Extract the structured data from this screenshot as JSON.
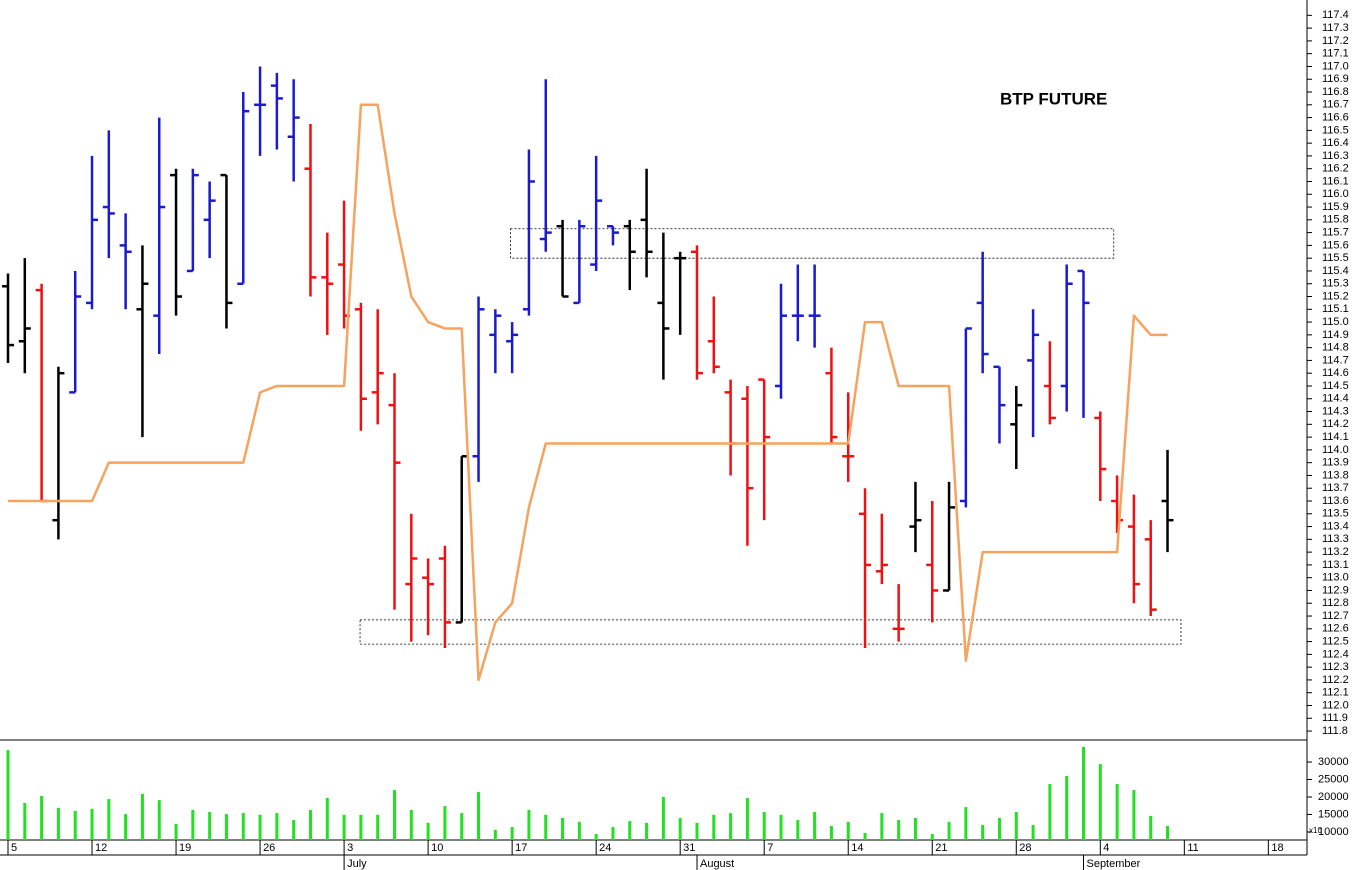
{
  "chart_data": [
    {
      "type": "ohlc",
      "title": "BTP FUTURE",
      "x": [
        0,
        1,
        2,
        3,
        4,
        5,
        6,
        7,
        8,
        9,
        10,
        11,
        12,
        13,
        14,
        15,
        16,
        17,
        18,
        19,
        20,
        21,
        22,
        23,
        24,
        25,
        26,
        27,
        28,
        29,
        30,
        31,
        32,
        33,
        34,
        35,
        36,
        37,
        38,
        39,
        40,
        41,
        42,
        43,
        44,
        45,
        46,
        47,
        48,
        49,
        50,
        51,
        52,
        53,
        54,
        55,
        56,
        57,
        58,
        59,
        60,
        61,
        62,
        63,
        64,
        65,
        66,
        67,
        68,
        69
      ],
      "open": [
        115.28,
        114.85,
        115.25,
        113.45,
        114.45,
        115.15,
        115.9,
        115.6,
        115.1,
        115.05,
        116.15,
        115.4,
        115.8,
        116.15,
        115.3,
        116.7,
        116.85,
        116.45,
        116.2,
        115.35,
        115.45,
        115.1,
        114.45,
        114.35,
        112.95,
        113.0,
        113.15,
        112.65,
        113.95,
        114.9,
        114.85,
        115.1,
        115.65,
        115.75,
        115.15,
        115.45,
        115.75,
        115.75,
        115.8,
        115.15,
        115.5,
        115.55,
        114.85,
        114.45,
        114.4,
        114.55,
        114.5,
        115.05,
        115.05,
        114.6,
        113.95,
        113.5,
        113.05,
        112.6,
        113.4,
        113.1,
        112.9,
        113.6,
        115.15,
        114.65,
        114.2,
        114.7,
        114.5,
        114.5,
        115.4,
        114.25,
        113.6,
        113.4,
        113.3,
        113.6
      ],
      "high": [
        115.38,
        115.5,
        115.3,
        114.65,
        115.4,
        116.3,
        116.5,
        115.85,
        115.6,
        116.6,
        116.2,
        116.2,
        116.1,
        116.15,
        116.8,
        117.0,
        116.95,
        116.9,
        116.55,
        115.7,
        115.95,
        115.15,
        115.1,
        114.6,
        113.5,
        113.15,
        113.25,
        113.95,
        115.2,
        115.1,
        115.0,
        116.35,
        116.9,
        115.8,
        115.8,
        116.3,
        115.75,
        115.8,
        116.2,
        115.7,
        115.55,
        115.6,
        115.2,
        114.55,
        114.5,
        114.55,
        115.3,
        115.45,
        115.45,
        114.8,
        114.45,
        113.7,
        113.5,
        112.95,
        113.75,
        113.6,
        113.75,
        114.95,
        115.55,
        114.65,
        114.5,
        115.1,
        114.85,
        115.45,
        115.4,
        114.3,
        113.8,
        113.65,
        113.45,
        114.0
      ],
      "low": [
        114.68,
        114.6,
        113.6,
        113.3,
        114.45,
        115.1,
        115.5,
        115.1,
        114.1,
        114.75,
        115.05,
        115.4,
        115.5,
        114.95,
        115.3,
        116.3,
        116.35,
        116.1,
        115.2,
        114.9,
        114.95,
        114.15,
        114.2,
        112.75,
        112.5,
        112.55,
        112.45,
        112.65,
        113.75,
        114.6,
        114.6,
        115.05,
        115.55,
        115.2,
        115.15,
        115.4,
        115.6,
        115.25,
        115.35,
        114.55,
        114.9,
        114.55,
        114.6,
        113.8,
        113.25,
        113.45,
        114.4,
        114.85,
        114.8,
        114.05,
        113.75,
        112.45,
        112.95,
        112.5,
        113.2,
        112.65,
        112.9,
        113.55,
        114.6,
        114.05,
        113.85,
        114.1,
        114.2,
        114.3,
        114.25,
        113.6,
        113.35,
        112.8,
        112.7,
        113.2
      ],
      "close": [
        114.82,
        114.95,
        113.6,
        114.6,
        115.2,
        115.8,
        115.85,
        115.55,
        115.3,
        115.9,
        115.2,
        116.15,
        115.95,
        115.15,
        116.65,
        116.7,
        116.75,
        116.6,
        115.35,
        115.3,
        115.05,
        114.4,
        114.6,
        113.9,
        113.15,
        112.95,
        112.65,
        113.95,
        115.1,
        115.05,
        114.9,
        116.1,
        115.7,
        115.2,
        115.75,
        115.95,
        115.7,
        115.55,
        115.55,
        114.95,
        115.5,
        114.6,
        114.65,
        114.05,
        113.7,
        114.1,
        115.05,
        115.05,
        115.05,
        114.1,
        113.95,
        113.1,
        113.1,
        112.6,
        113.45,
        112.9,
        113.55,
        114.95,
        114.75,
        114.35,
        114.35,
        114.9,
        114.25,
        115.3,
        115.15,
        113.85,
        113.45,
        112.95,
        112.75,
        113.45
      ],
      "colors": [
        "#000000",
        "#000000",
        "#ee1111",
        "#000000",
        "#1a1ad0",
        "#1a1ad0",
        "#1a1ad0",
        "#1a1ad0",
        "#000000",
        "#1a1ad0",
        "#000000",
        "#1a1ad0",
        "#1a1ad0",
        "#000000",
        "#1a1ad0",
        "#1a1ad0",
        "#1a1ad0",
        "#1a1ad0",
        "#ee1111",
        "#ee1111",
        "#ee1111",
        "#ee1111",
        "#ee1111",
        "#ee1111",
        "#ee1111",
        "#ee1111",
        "#ee1111",
        "#000000",
        "#1a1ad0",
        "#1a1ad0",
        "#1a1ad0",
        "#1a1ad0",
        "#1a1ad0",
        "#000000",
        "#1a1ad0",
        "#1a1ad0",
        "#1a1ad0",
        "#000000",
        "#000000",
        "#000000",
        "#000000",
        "#ee1111",
        "#ee1111",
        "#ee1111",
        "#ee1111",
        "#ee1111",
        "#1a1ad0",
        "#1a1ad0",
        "#1a1ad0",
        "#ee1111",
        "#ee1111",
        "#ee1111",
        "#ee1111",
        "#ee1111",
        "#000000",
        "#ee1111",
        "#000000",
        "#1a1ad0",
        "#1a1ad0",
        "#1a1ad0",
        "#000000",
        "#1a1ad0",
        "#ee1111",
        "#1a1ad0",
        "#1a1ad0",
        "#ee1111",
        "#ee1111",
        "#ee1111",
        "#ee1111",
        "#000000"
      ],
      "line": {
        "color": "#f5a35e",
        "values": [
          113.6,
          113.6,
          113.6,
          113.6,
          113.6,
          113.6,
          113.9,
          113.9,
          113.9,
          113.9,
          113.9,
          113.9,
          113.9,
          113.9,
          113.9,
          114.45,
          114.5,
          114.5,
          114.5,
          114.5,
          114.5,
          116.7,
          116.7,
          115.85,
          115.2,
          115.0,
          114.95,
          114.95,
          112.2,
          112.65,
          112.8,
          113.55,
          114.05,
          114.05,
          114.05,
          114.05,
          114.05,
          114.05,
          114.05,
          114.05,
          114.05,
          114.05,
          114.05,
          114.05,
          114.05,
          114.05,
          114.05,
          114.05,
          114.05,
          114.05,
          114.05,
          115.0,
          115.0,
          114.5,
          114.5,
          114.5,
          114.5,
          112.35,
          113.2,
          113.2,
          113.2,
          113.2,
          113.2,
          113.2,
          113.2,
          113.2,
          113.2,
          115.05,
          114.9,
          114.9
        ]
      },
      "zones": [
        {
          "x0": 29.9,
          "x1": 65.8,
          "y0": 115.5,
          "y1": 115.73
        },
        {
          "x0": 20.95,
          "x1": 69.8,
          "y0": 112.48,
          "y1": 112.67
        }
      ],
      "xlim": [
        -0.476,
        77.3
      ],
      "ylim": [
        111.73,
        117.52
      ],
      "yticks": [
        111.8,
        111.9,
        {
          "value": 112,
          "label": "112.0"
        },
        112.1,
        112.2,
        112.3,
        112.4,
        112.5,
        112.6,
        112.7,
        112.8,
        112.9,
        {
          "value": 113,
          "label": "113.0"
        },
        113.1,
        113.2,
        113.3,
        113.4,
        113.5,
        113.6,
        113.7,
        113.8,
        113.9,
        {
          "value": 114,
          "label": "114.0"
        },
        114.1,
        114.2,
        114.3,
        114.4,
        114.5,
        114.6,
        114.7,
        114.8,
        114.9,
        {
          "value": 115,
          "label": "115.0"
        },
        115.1,
        115.2,
        115.3,
        115.4,
        115.5,
        115.6,
        115.7,
        115.8,
        115.9,
        {
          "value": 116,
          "label": "116.0"
        },
        116.1,
        116.2,
        116.3,
        116.4,
        116.5,
        116.6,
        116.7,
        116.8,
        116.9,
        {
          "value": 117,
          "label": "117.0"
        },
        117.1,
        117.2,
        117.3,
        117.4
      ]
    },
    {
      "type": "bar",
      "color": "#22e022",
      "x": [
        0,
        1,
        2,
        3,
        4,
        5,
        6,
        7,
        8,
        9,
        10,
        11,
        12,
        13,
        14,
        15,
        16,
        17,
        18,
        19,
        20,
        21,
        22,
        23,
        24,
        25,
        26,
        27,
        28,
        29,
        30,
        31,
        32,
        33,
        34,
        35,
        36,
        37,
        38,
        39,
        40,
        41,
        42,
        43,
        44,
        45,
        46,
        47,
        48,
        49,
        50,
        51,
        52,
        53,
        54,
        55,
        56,
        57,
        58,
        59,
        60,
        61,
        62,
        63,
        64,
        65,
        66,
        67,
        68,
        69
      ],
      "values": [
        33400,
        18300,
        20300,
        16900,
        16000,
        16600,
        19400,
        15100,
        20900,
        19100,
        12300,
        16300,
        15700,
        15100,
        15400,
        14900,
        15400,
        13400,
        16300,
        19700,
        14900,
        14900,
        14900,
        22000,
        16300,
        12600,
        17400,
        15400,
        21400,
        10600,
        11400,
        16300,
        14900,
        14000,
        12900,
        9400,
        11400,
        13100,
        12600,
        20000,
        14000,
        12600,
        14900,
        15400,
        19700,
        15700,
        14900,
        13400,
        15700,
        11700,
        12900,
        9700,
        15400,
        13400,
        14000,
        9400,
        12900,
        17100,
        12000,
        14000,
        15700,
        12000,
        23700,
        26000,
        34300,
        29400,
        23700,
        22000,
        14600,
        11700
      ],
      "xlim": [
        -0.476,
        77.3
      ],
      "ylim": [
        7700,
        36300
      ],
      "yticks": [
        10000,
        15000,
        20000,
        25000,
        30000
      ],
      "axis_note": "x10",
      "xticks": [
        {
          "value": 0,
          "label": "5"
        },
        {
          "value": 5,
          "label": "12"
        },
        {
          "value": 10,
          "label": "19"
        },
        {
          "value": 15,
          "label": "26"
        },
        {
          "value": 20,
          "label": "3"
        },
        {
          "value": 25,
          "label": "10"
        },
        {
          "value": 30,
          "label": "17"
        },
        {
          "value": 35,
          "label": "24"
        },
        {
          "value": 40,
          "label": "31"
        },
        {
          "value": 45,
          "label": "7"
        },
        {
          "value": 50,
          "label": "14"
        },
        {
          "value": 55,
          "label": "21"
        },
        {
          "value": 60,
          "label": "28"
        },
        {
          "value": 65,
          "label": "4"
        },
        {
          "value": 70,
          "label": "11"
        },
        {
          "value": 75,
          "label": "18"
        }
      ],
      "month_ticks": [
        {
          "value": 20,
          "label": "July"
        },
        {
          "value": 41,
          "label": "August"
        },
        {
          "value": 64,
          "label": "September"
        }
      ]
    }
  ]
}
